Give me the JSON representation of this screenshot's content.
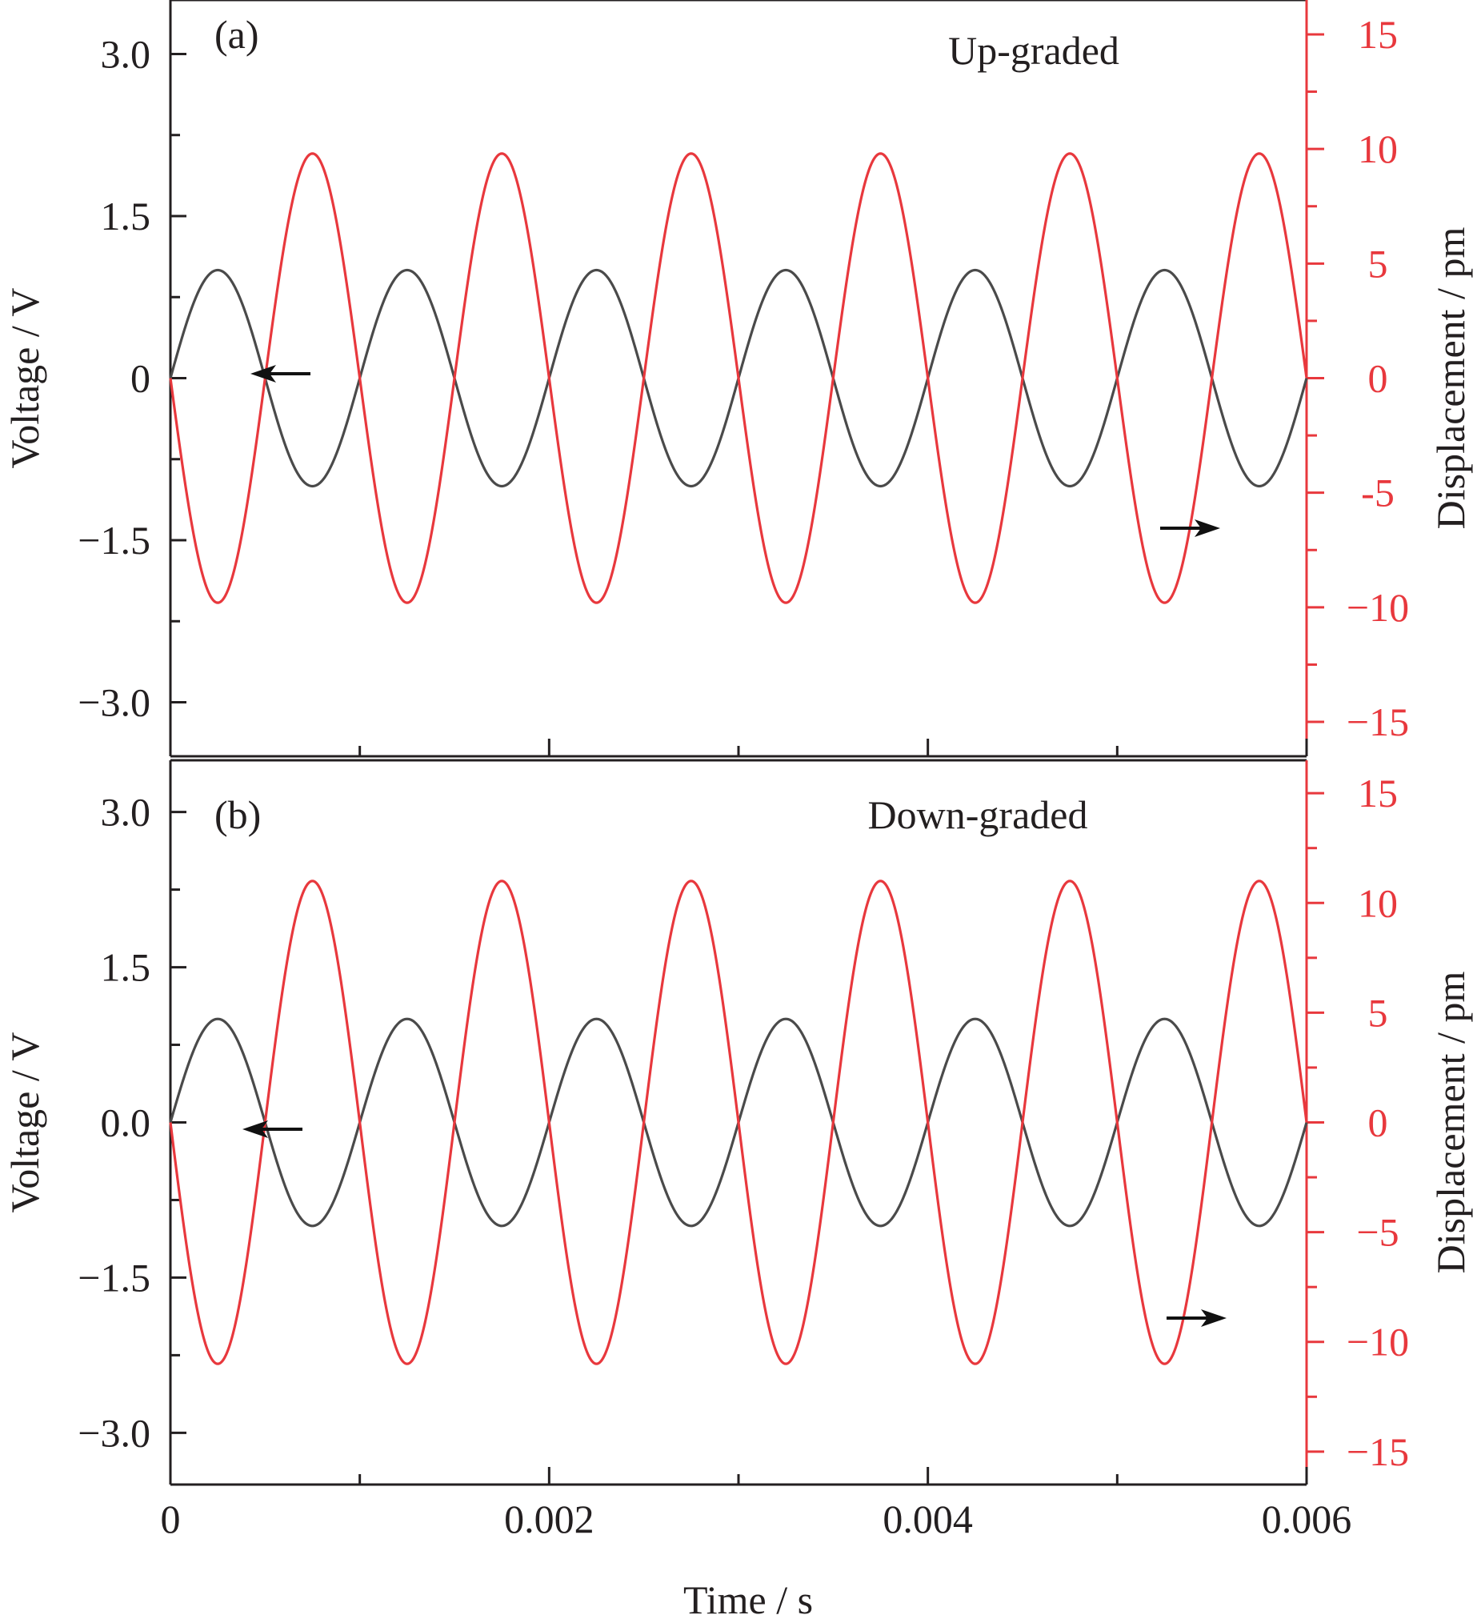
{
  "chart_data": [
    {
      "type": "line",
      "panel_label": "(a)",
      "annotation": "Up-graded",
      "x_range": [
        0,
        0.006
      ],
      "x_ticks": [
        0,
        0.002,
        0.004,
        0.006
      ],
      "x_tick_labels": [
        "0",
        "0.002",
        "0.004",
        "0.006"
      ],
      "xlabel": "Time / s",
      "ylabel_left": "Voltage / V",
      "ylim_left": [
        -3.5,
        3.5
      ],
      "y_ticks_left": [
        3.0,
        1.5,
        0,
        -1.5,
        -3.0
      ],
      "y_tick_labels_left": [
        "3.0",
        "1.5",
        "0",
        "−1.5",
        "−3.0"
      ],
      "ylabel_right": "Displacement / pm",
      "ylim_right": [
        -16.5,
        16.5
      ],
      "y_ticks_right": [
        15,
        10,
        5,
        0,
        -5,
        -10,
        -15
      ],
      "y_tick_labels_right": [
        "15",
        "10",
        "5",
        "0",
        "-5",
        "−10",
        "−15"
      ],
      "series": [
        {
          "axis": "left",
          "color": "#4a4a4a",
          "function": "amplitude*sin(2*pi*frequency*t)",
          "amplitude": 1.0,
          "frequency_hz": 1000,
          "x": [
            0,
            0.00025,
            0.0005,
            0.00075,
            0.001
          ],
          "y": [
            0,
            1.0,
            0,
            -1.0,
            0
          ],
          "repeats_to": 0.006
        },
        {
          "axis": "right",
          "color": "#e8383d",
          "function": "-amplitude*sin(2*pi*frequency*t)",
          "amplitude": 9.8,
          "frequency_hz": 1000,
          "x": [
            0,
            0.00025,
            0.0005,
            0.00075,
            0.001
          ],
          "y": [
            0,
            -9.8,
            0,
            9.8,
            0
          ],
          "repeats_to": 0.006
        }
      ],
      "arrows": [
        {
          "direction": "left",
          "points_to_axis": "left"
        },
        {
          "direction": "right",
          "points_to_axis": "right"
        }
      ]
    },
    {
      "type": "line",
      "panel_label": "(b)",
      "annotation": "Down-graded",
      "x_range": [
        0,
        0.006
      ],
      "x_ticks": [
        0,
        0.002,
        0.004,
        0.006
      ],
      "x_tick_labels": [
        "0",
        "0.002",
        "0.004",
        "0.006"
      ],
      "xlabel": "Time / s",
      "ylabel_left": "Voltage / V",
      "ylim_left": [
        -3.5,
        3.5
      ],
      "y_ticks_left": [
        3.0,
        1.5,
        0.0,
        -1.5,
        -3.0
      ],
      "y_tick_labels_left": [
        "3.0",
        "1.5",
        "0.0",
        "−1.5",
        "−3.0"
      ],
      "ylabel_right": "Displacement / pm",
      "ylim_right": [
        -16.5,
        16.5
      ],
      "y_ticks_right": [
        15,
        10,
        5,
        0,
        -5,
        -10,
        -15
      ],
      "y_tick_labels_right": [
        "15",
        "10",
        "5",
        "0",
        "−5",
        "−10",
        "−15"
      ],
      "series": [
        {
          "axis": "left",
          "color": "#4a4a4a",
          "function": "amplitude*sin(2*pi*frequency*t)",
          "amplitude": 1.0,
          "frequency_hz": 1000,
          "x": [
            0,
            0.00025,
            0.0005,
            0.00075,
            0.001
          ],
          "y": [
            0,
            1.0,
            0,
            -1.0,
            0
          ],
          "repeats_to": 0.006
        },
        {
          "axis": "right",
          "color": "#e8383d",
          "function": "-amplitude*sin(2*pi*frequency*t)",
          "amplitude": 11.0,
          "frequency_hz": 1000,
          "x": [
            0,
            0.00025,
            0.0005,
            0.00075,
            0.001
          ],
          "y": [
            0,
            -11.0,
            0,
            11.0,
            0
          ],
          "repeats_to": 0.006
        }
      ],
      "arrows": [
        {
          "direction": "left",
          "points_to_axis": "left"
        },
        {
          "direction": "right",
          "points_to_axis": "right"
        }
      ]
    }
  ],
  "colors": {
    "left_axis": "#231f20",
    "right_axis": "#e8383d",
    "voltage_line": "#4a4a4a",
    "displacement_line": "#e8383d"
  }
}
